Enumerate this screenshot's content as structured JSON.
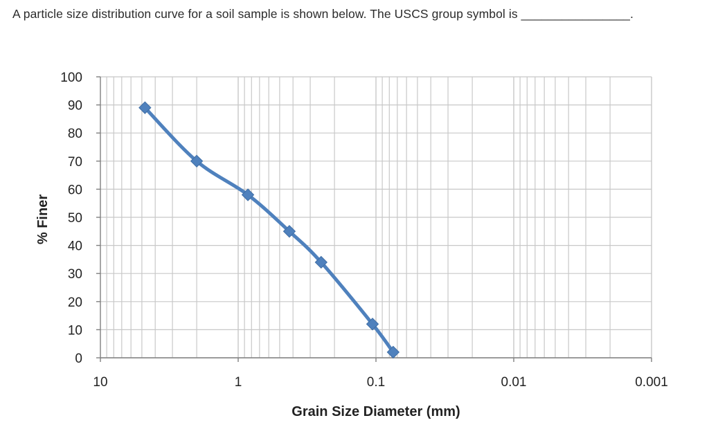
{
  "question": "A particle size distribution curve for a soil sample is shown below.  The USCS group symbol is ________________.",
  "chart_data": {
    "type": "line",
    "xlabel": "Grain Size Diameter (mm)",
    "ylabel": "% Finer",
    "x_scale": "log",
    "x_reversed": true,
    "xlim": [
      10,
      0.001
    ],
    "ylim": [
      0,
      100
    ],
    "x_ticks": [
      "10",
      "1",
      "0.1",
      "0.01",
      "0.001"
    ],
    "y_ticks": [
      "100",
      "90",
      "80",
      "70",
      "60",
      "50",
      "40",
      "30",
      "20",
      "10",
      "0"
    ],
    "grid": true,
    "series": [
      {
        "color": "#4f81bd",
        "marker": "diamond",
        "points": [
          {
            "x": 4.75,
            "y": 89
          },
          {
            "x": 2.0,
            "y": 70
          },
          {
            "x": 0.85,
            "y": 58
          },
          {
            "x": 0.425,
            "y": 45
          },
          {
            "x": 0.25,
            "y": 34
          },
          {
            "x": 0.106,
            "y": 12
          },
          {
            "x": 0.075,
            "y": 2
          }
        ]
      }
    ]
  }
}
